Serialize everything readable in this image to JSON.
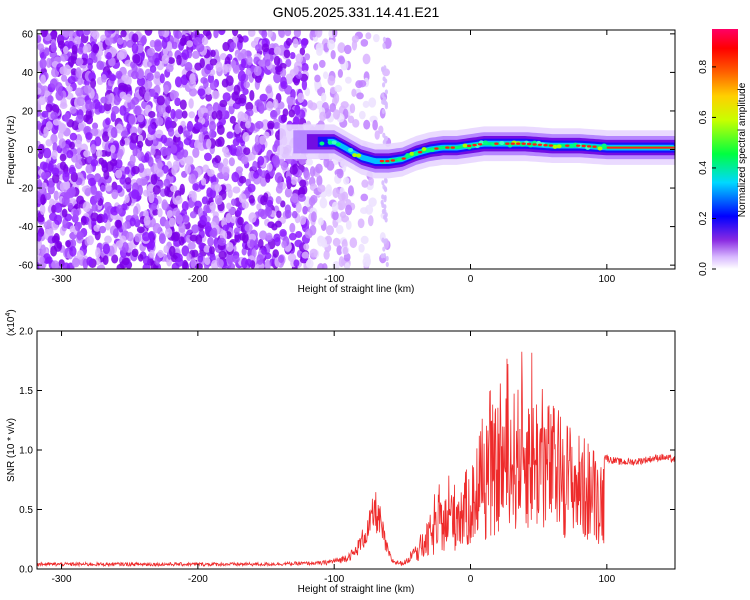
{
  "title": "GN05.2025.331.14.41.E21",
  "chart_data": [
    {
      "type": "heatmap",
      "title": "GN05.2025.331.14.41.E21",
      "xlabel": "Height of straight line (km)",
      "ylabel": "Frequency (Hz)",
      "xlim": [
        -318,
        150
      ],
      "ylim": [
        -62,
        62
      ],
      "xticks": [
        -300,
        -200,
        -100,
        0,
        100
      ],
      "xtick_labels": [
        "-300",
        "-200",
        "-100",
        "0",
        "100"
      ],
      "yticks": [
        -60,
        -40,
        -20,
        0,
        20,
        40,
        60
      ],
      "ytick_labels": [
        "-60",
        "-40",
        "-20",
        "0",
        "20",
        "40",
        "60"
      ],
      "ridge": {
        "description": "Dominant narrow-band signal",
        "x": [
          -120,
          -100,
          -90,
          -80,
          -70,
          -60,
          -50,
          -40,
          -30,
          -20,
          -10,
          0,
          10,
          20,
          40,
          60,
          80,
          100,
          120,
          150
        ],
        "freq": [
          4,
          4,
          0,
          -4,
          -6,
          -6,
          -5,
          -2,
          0,
          1,
          1,
          2,
          3,
          3,
          3,
          2,
          2,
          1,
          1,
          1
        ]
      },
      "colorbar": {
        "label": "Normalized spectral amplitude",
        "range": [
          0,
          0.95
        ],
        "ticks": [
          0.0,
          0.2,
          0.4,
          0.6,
          0.8
        ],
        "tick_labels": [
          "0.0",
          "0.2",
          "0.4",
          "0.6",
          "0.8"
        ],
        "colors": [
          "#ffffff",
          "#7f00ff",
          "#0000ff",
          "#00ffff",
          "#00ff00",
          "#ffff00",
          "#ff8000",
          "#ff0000",
          "#ff0080"
        ]
      }
    },
    {
      "type": "line",
      "xlabel": "Height of straight line (km)",
      "ylabel": "SNR (10 * v/v)",
      "scale_label": "(x10",
      "scale_exp": "4",
      "scale_close": ")",
      "xlim": [
        -318,
        150
      ],
      "ylim": [
        0,
        2.0
      ],
      "xticks": [
        -300,
        -200,
        -100,
        0,
        100
      ],
      "xtick_labels": [
        "-300",
        "-200",
        "-100",
        "0",
        "100"
      ],
      "yticks": [
        0,
        0.5,
        1.0,
        1.5,
        2.0
      ],
      "ytick_labels": [
        "0.0",
        "0.5",
        "1.0",
        "1.5",
        "2.0"
      ],
      "color": "#ee2b2b",
      "series": [
        {
          "name": "SNR",
          "x": [
            -318,
            -250,
            -200,
            -150,
            -110,
            -95,
            -85,
            -75,
            -70,
            -66,
            -62,
            -58,
            -55,
            -50,
            -45,
            -40,
            -36,
            -33,
            -30,
            -25,
            -20,
            -15,
            -10,
            -5,
            0,
            5,
            10,
            15,
            20,
            25,
            30,
            35,
            40,
            45,
            50,
            55,
            60,
            65,
            70,
            75,
            80,
            85,
            90,
            95,
            98,
            102,
            110,
            120,
            130,
            140,
            150
          ],
          "y": [
            0.04,
            0.04,
            0.04,
            0.04,
            0.05,
            0.08,
            0.14,
            0.35,
            0.52,
            0.4,
            0.2,
            0.08,
            0.06,
            0.05,
            0.08,
            0.25,
            0.3,
            0.35,
            0.45,
            0.55,
            0.6,
            0.7,
            0.75,
            0.8,
            0.9,
            1.0,
            1.1,
            1.25,
            1.4,
            1.45,
            1.5,
            1.55,
            1.6,
            1.55,
            1.5,
            1.45,
            1.4,
            1.35,
            1.3,
            1.2,
            1.15,
            1.1,
            1.05,
            1.0,
            0.95,
            0.92,
            0.9,
            0.9,
            0.92,
            0.94,
            0.92
          ]
        }
      ]
    }
  ]
}
